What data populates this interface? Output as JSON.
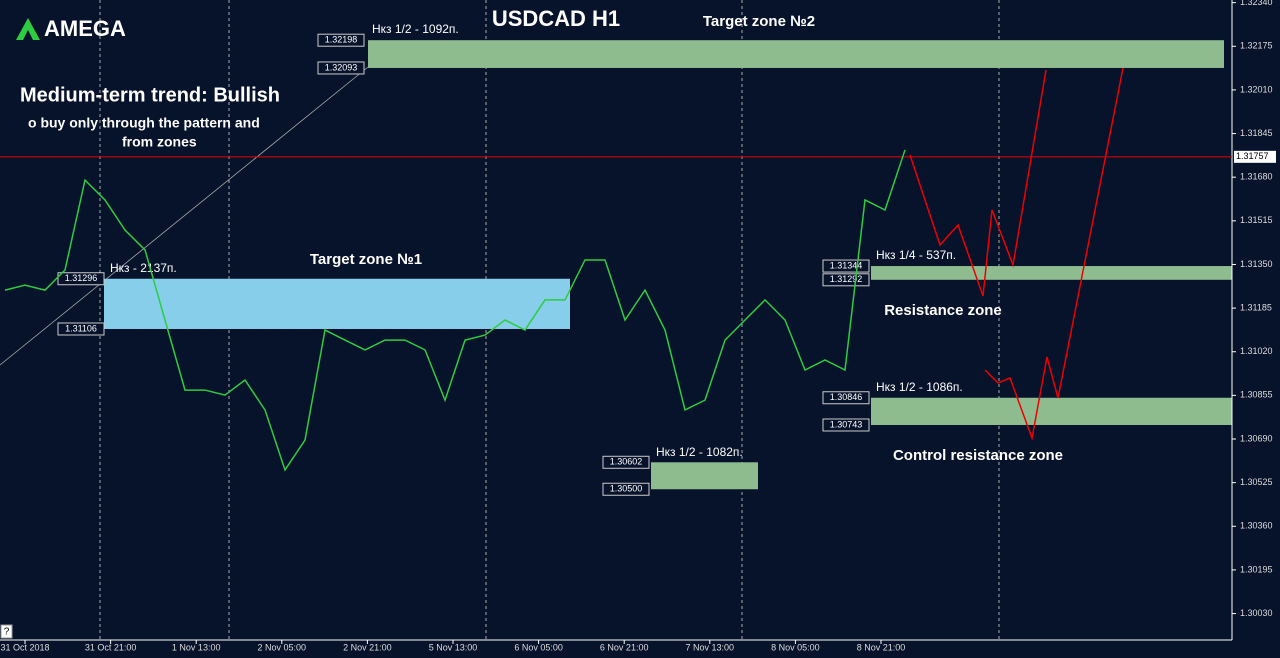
{
  "chart_data": {
    "type": "price-line",
    "brand": "AMEGA",
    "title": "USDCAD H1",
    "trend": "Medium-term trend: Bullish",
    "advice": [
      "o buy only through the pattern  and",
      "from zones"
    ],
    "color": "#2ecc40",
    "current_price": 1.31757,
    "help": "?",
    "ylim": [
      1.2993,
      1.3235
    ],
    "yticks": [
      {
        "value": 1.3234,
        "label": "1.32340"
      },
      1.32175,
      {
        "value": 1.3201,
        "label": "1.32010"
      },
      1.31845,
      {
        "value": 1.3168,
        "label": "1.31680"
      },
      1.31515,
      {
        "value": 1.3135,
        "label": "1.31350"
      },
      1.31185,
      {
        "value": 1.3102,
        "label": "1.31020"
      },
      1.30855,
      {
        "value": 1.3069,
        "label": "1.30690"
      },
      1.30525,
      {
        "value": 1.3036,
        "label": "1.30360"
      },
      1.30195,
      {
        "value": 1.3003,
        "label": "1.30030"
      }
    ],
    "x_labels": [
      "31 Oct 2018",
      "31 Oct 21:00",
      "1 Nov 13:00",
      "2 Nov 05:00",
      "2 Nov 21:00",
      "5 Nov 13:00",
      "6 Nov 05:00",
      "6 Nov 21:00",
      "7 Nov 13:00",
      "8 Nov 05:00",
      "8 Nov 21:00"
    ],
    "values": [
      1.31253,
      1.31272,
      1.31253,
      1.31329,
      1.31669,
      1.31594,
      1.3148,
      1.31405,
      1.3114,
      1.30875,
      1.30875,
      1.30856,
      1.30913,
      1.308,
      1.30573,
      1.30686,
      1.31102,
      1.31064,
      1.31027,
      1.31064,
      1.31064,
      1.31027,
      1.30837,
      1.31064,
      1.31083,
      1.3114,
      1.31102,
      1.31216,
      1.31216,
      1.31367,
      1.31367,
      1.3114,
      1.31253,
      1.31102,
      1.308,
      1.30837,
      1.31064,
      1.3114,
      1.31216,
      1.3114,
      1.30951,
      1.30989,
      1.30951,
      1.31594,
      1.31556,
      1.31783
    ],
    "zones": [
      {
        "name": "Target zone №2",
        "top": 1.32198,
        "bottom": 1.32093,
        "note": "Нкз 1/2 - 1092п.",
        "color": "#8fbc8f"
      },
      {
        "name": "Target zone №1",
        "top": 1.31296,
        "bottom": 1.31106,
        "note": "Нкз - 2137п.",
        "color": "#87ceeb"
      },
      {
        "top": 1.30602,
        "bottom": {
          "value": 1.305,
          "label": "1.30500"
        },
        "note": "Нкз 1/2 - 1082п.",
        "color": "#8fbc8f"
      },
      {
        "name": "Resistance zone",
        "top": 1.31344,
        "bottom": 1.31292,
        "note": "Нкз 1/4 - 537п.",
        "color": "#8fbc8f"
      },
      {
        "name": "Control resistance zone",
        "top": 1.30846,
        "bottom": 1.30743,
        "note": "Нкз 1/2 - 1086п.",
        "color": "#8fbc8f"
      }
    ]
  }
}
